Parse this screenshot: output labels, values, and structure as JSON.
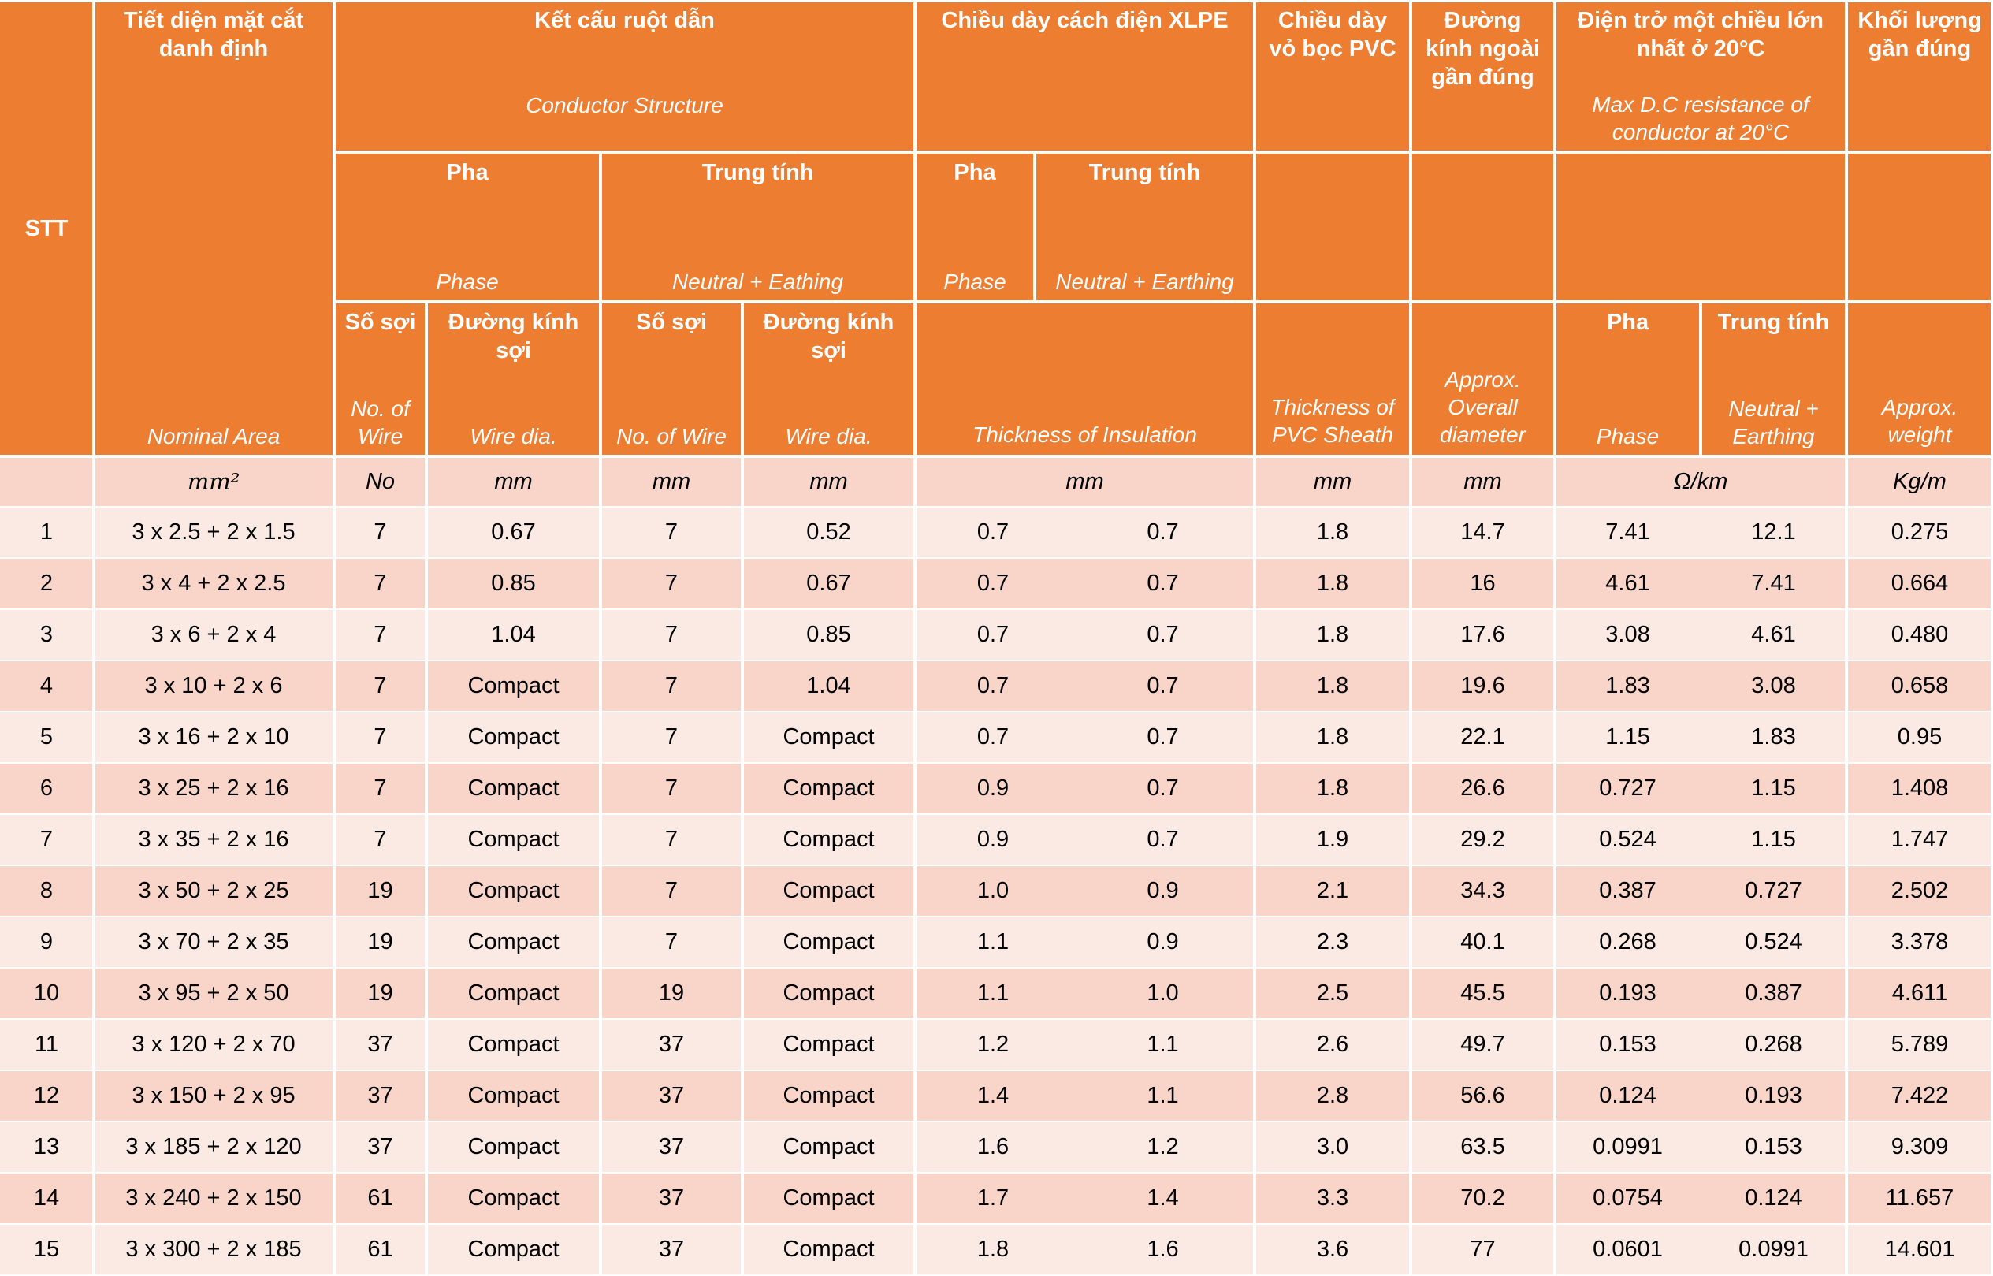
{
  "headers": {
    "stt": "STT",
    "nominal_area": {
      "vi": "Tiết diện mặt cắt danh định",
      "en": "Nominal Area"
    },
    "conductor": {
      "vi": "Kết cấu ruột dẫn",
      "en": "Conductor Structure"
    },
    "insulation": {
      "vi": "Chiều dày cách điện XLPE",
      "en": "Thickness of Insulation"
    },
    "sheath": {
      "vi": "Chiều dày vỏ bọc PVC",
      "en": "Thickness of PVC Sheath"
    },
    "diameter": {
      "vi": "Đường kính ngoài gần đúng",
      "en": "Approx. Overall diameter"
    },
    "resistance": {
      "vi": "Điện trở một chiều lớn nhất ở 20°C",
      "en": "Max D.C resistance of conductor at 20°C"
    },
    "weight": {
      "vi": "Khối lượng gần đúng",
      "en": "Approx. weight"
    },
    "phase": {
      "vi": "Pha",
      "en": "Phase"
    },
    "neutral_cond": {
      "vi": "Trung tính",
      "en": "Neutral + Eathing"
    },
    "neutral_ins": {
      "vi": "Trung tính",
      "en": "Neutral + Earthing"
    },
    "neutral_res": {
      "vi": "Trung tính",
      "en": "Neutral + Earthing"
    },
    "num_wire": {
      "vi": "Số sợi",
      "en": "No. of Wire"
    },
    "wire_dia": {
      "vi": "Đường kính sợi",
      "en": "Wire dia."
    }
  },
  "units": {
    "area": "mm²",
    "phase_no": "No",
    "phase_dia": "mm",
    "neutral_no": "mm",
    "neutral_dia": "mm",
    "insulation": "mm",
    "sheath": "mm",
    "diameter": "mm",
    "resistance": "Ω/km",
    "weight": "Kg/m"
  },
  "rows": [
    [
      "1",
      "3 x 2.5 + 2 x 1.5",
      "7",
      "0.67",
      "7",
      "0.52",
      "0.7",
      "0.7",
      "1.8",
      "14.7",
      "7.41",
      "12.1",
      "0.275"
    ],
    [
      "2",
      "3 x 4 + 2 x 2.5",
      "7",
      "0.85",
      "7",
      "0.67",
      "0.7",
      "0.7",
      "1.8",
      "16",
      "4.61",
      "7.41",
      "0.664"
    ],
    [
      "3",
      "3 x 6 + 2 x 4",
      "7",
      "1.04",
      "7",
      "0.85",
      "0.7",
      "0.7",
      "1.8",
      "17.6",
      "3.08",
      "4.61",
      "0.480"
    ],
    [
      "4",
      "3 x 10 + 2 x 6",
      "7",
      "Compact",
      "7",
      "1.04",
      "0.7",
      "0.7",
      "1.8",
      "19.6",
      "1.83",
      "3.08",
      "0.658"
    ],
    [
      "5",
      "3 x 16 + 2 x 10",
      "7",
      "Compact",
      "7",
      "Compact",
      "0.7",
      "0.7",
      "1.8",
      "22.1",
      "1.15",
      "1.83",
      "0.95"
    ],
    [
      "6",
      "3 x 25 + 2 x 16",
      "7",
      "Compact",
      "7",
      "Compact",
      "0.9",
      "0.7",
      "1.8",
      "26.6",
      "0.727",
      "1.15",
      "1.408"
    ],
    [
      "7",
      "3 x 35 + 2 x 16",
      "7",
      "Compact",
      "7",
      "Compact",
      "0.9",
      "0.7",
      "1.9",
      "29.2",
      "0.524",
      "1.15",
      "1.747"
    ],
    [
      "8",
      "3 x 50 + 2 x 25",
      "19",
      "Compact",
      "7",
      "Compact",
      "1.0",
      "0.9",
      "2.1",
      "34.3",
      "0.387",
      "0.727",
      "2.502"
    ],
    [
      "9",
      "3 x 70 + 2 x 35",
      "19",
      "Compact",
      "7",
      "Compact",
      "1.1",
      "0.9",
      "2.3",
      "40.1",
      "0.268",
      "0.524",
      "3.378"
    ],
    [
      "10",
      "3 x 95 + 2 x 50",
      "19",
      "Compact",
      "19",
      "Compact",
      "1.1",
      "1.0",
      "2.5",
      "45.5",
      "0.193",
      "0.387",
      "4.611"
    ],
    [
      "11",
      "3 x 120 + 2 x 70",
      "37",
      "Compact",
      "37",
      "Compact",
      "1.2",
      "1.1",
      "2.6",
      "49.7",
      "0.153",
      "0.268",
      "5.789"
    ],
    [
      "12",
      "3 x 150 + 2 x 95",
      "37",
      "Compact",
      "37",
      "Compact",
      "1.4",
      "1.1",
      "2.8",
      "56.6",
      "0.124",
      "0.193",
      "7.422"
    ],
    [
      "13",
      "3 x 185 + 2 x 120",
      "37",
      "Compact",
      "37",
      "Compact",
      "1.6",
      "1.2",
      "3.0",
      "63.5",
      "0.0991",
      "0.153",
      "9.309"
    ],
    [
      "14",
      "3 x 240 + 2 x 150",
      "61",
      "Compact",
      "37",
      "Compact",
      "1.7",
      "1.4",
      "3.3",
      "70.2",
      "0.0754",
      "0.124",
      "11.657"
    ],
    [
      "15",
      "3 x 300 + 2 x 185",
      "61",
      "Compact",
      "37",
      "Compact",
      "1.8",
      "1.6",
      "3.6",
      "77",
      "0.0601",
      "0.0991",
      "14.601"
    ]
  ],
  "colors": {
    "header": "#ED7D31",
    "row_light": "#FBE9E3",
    "row_dark": "#F8D5C8"
  }
}
